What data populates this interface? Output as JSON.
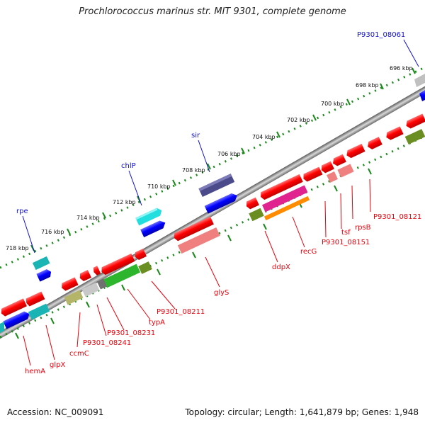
{
  "title": "Prochlorococcus marinus str. MIT 9301, complete genome",
  "footer": {
    "accession": "Accession: NC_009091",
    "summary": "Topology: circular; Length: 1,641,879 bp; Genes: 1,948"
  },
  "scale_ticks": [
    "696 kbp",
    "698 kbp",
    "700 kbp",
    "702 kbp",
    "704 kbp",
    "706 kbp",
    "708 kbp",
    "710 kbp",
    "712 kbp",
    "714 kbp",
    "716 kbp",
    "718 kbp"
  ],
  "genes_outer": [
    {
      "name": "P9301_08061",
      "color": "#1010d0"
    },
    {
      "name": "sir",
      "color": "#1010d0"
    },
    {
      "name": "chlP",
      "color": "#1010d0"
    },
    {
      "name": "rpe",
      "color": "#1010d0"
    }
  ],
  "genes_inner": [
    {
      "name": "P9301_08121",
      "color": "#e8000b"
    },
    {
      "name": "rpsB",
      "color": "#e8000b"
    },
    {
      "name": "tsf",
      "color": "#e8000b"
    },
    {
      "name": "P9301_08151",
      "color": "#e8000b"
    },
    {
      "name": "recG",
      "color": "#e8000b"
    },
    {
      "name": "ddpX",
      "color": "#e8000b"
    },
    {
      "name": "glyS",
      "color": "#e8000b"
    },
    {
      "name": "P9301_08211",
      "color": "#e8000b"
    },
    {
      "name": "typA",
      "color": "#e8000b"
    },
    {
      "name": "P9301_08231",
      "color": "#e8000b"
    },
    {
      "name": "P9301_08241",
      "color": "#e8000b"
    },
    {
      "name": "ccmC",
      "color": "#e8000b"
    },
    {
      "name": "glpX",
      "color": "#e8000b"
    },
    {
      "name": "hemA",
      "color": "#e8000b"
    }
  ]
}
